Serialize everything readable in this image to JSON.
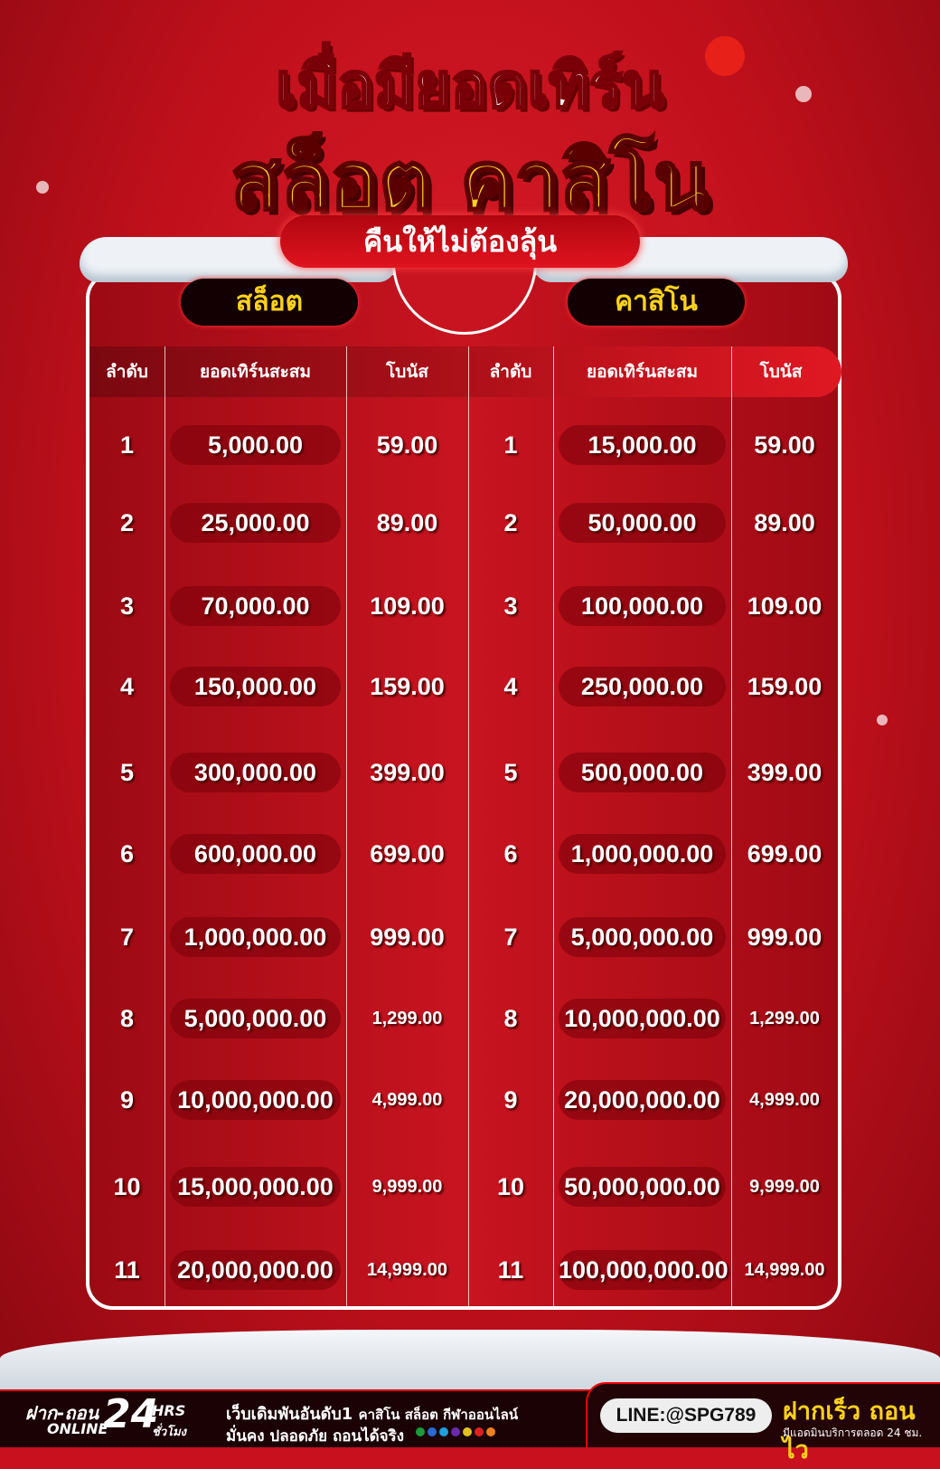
{
  "title": {
    "line1": "เมื่อมียอดเทิร์น",
    "line2": "สล็อต คาสิโน",
    "subtitle": "คืนให้ไม่ต้องลุ้น"
  },
  "sections": {
    "slot": "สล็อต",
    "casino": "คาสิโน"
  },
  "columns": {
    "rank": "ลำดับ",
    "turnover": "ยอดเทิร์นสะสม",
    "bonus": "โบนัส"
  },
  "slot_rows": [
    [
      "1",
      "5,000.00",
      "59.00"
    ],
    [
      "2",
      "25,000.00",
      "89.00"
    ],
    [
      "3",
      "70,000.00",
      "109.00"
    ],
    [
      "4",
      "150,000.00",
      "159.00"
    ],
    [
      "5",
      "300,000.00",
      "399.00"
    ],
    [
      "6",
      "600,000.00",
      "699.00"
    ],
    [
      "7",
      "1,000,000.00",
      "999.00"
    ],
    [
      "8",
      "5,000,000.00",
      "1,299.00"
    ],
    [
      "9",
      "10,000,000.00",
      "4,999.00"
    ],
    [
      "10",
      "15,000,000.00",
      "9,999.00"
    ],
    [
      "11",
      "20,000,000.00",
      "14,999.00"
    ]
  ],
  "casino_rows": [
    [
      "1",
      "15,000.00",
      "59.00"
    ],
    [
      "2",
      "50,000.00",
      "89.00"
    ],
    [
      "3",
      "100,000.00",
      "109.00"
    ],
    [
      "4",
      "250,000.00",
      "159.00"
    ],
    [
      "5",
      "500,000.00",
      "399.00"
    ],
    [
      "6",
      "1,000,000.00",
      "699.00"
    ],
    [
      "7",
      "5,000,000.00",
      "999.00"
    ],
    [
      "8",
      "10,000,000.00",
      "1,299.00"
    ],
    [
      "9",
      "20,000,000.00",
      "4,999.00"
    ],
    [
      "10",
      "50,000,000.00",
      "9,999.00"
    ],
    [
      "11",
      "100,000,000.00",
      "14,999.00"
    ]
  ],
  "footer": {
    "deposit_label": "ฝาก-ถอน",
    "online": "ONLINE",
    "hours": "24",
    "hrs": "HRS",
    "hrs_th": "ชั่วโมง",
    "tagline1_main": "เว็บเดิมพันอันดับ1",
    "tagline1_sub": "คาสิโน สล็อต กีฬาออนไลน์",
    "tagline2": "มั่นคง ปลอดภัย ถอนได้จริง",
    "line_id": "LINE:@SPG789",
    "fast": "ฝากเร็ว ถอนไว",
    "admin": "มีแอดมินบริการตลอด 24 ชม."
  },
  "colors": {
    "background": "#c8101e",
    "gold": "#ffd21c",
    "header": "#e01822"
  }
}
